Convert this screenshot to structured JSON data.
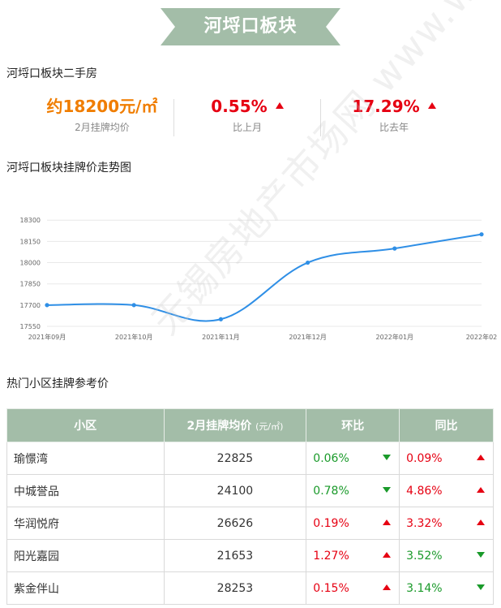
{
  "banner": {
    "title": "河埒口板块"
  },
  "section1": {
    "title": "河埒口板块二手房"
  },
  "stats": {
    "price": {
      "value": "约18200元/㎡",
      "label": "2月挂牌均价",
      "color": "#f07d00"
    },
    "mom": {
      "value": "0.55%",
      "label": "比上月",
      "color": "#e60012"
    },
    "yoy": {
      "value": "17.29%",
      "label": "比去年",
      "color": "#e60012"
    }
  },
  "section2": {
    "title": "河埒口板块挂牌价走势图"
  },
  "chart_data": {
    "type": "line",
    "categories": [
      "2021年09月",
      "2021年10月",
      "2021年11月",
      "2021年12月",
      "2022年01月",
      "2022年02"
    ],
    "values": [
      17700,
      17700,
      17600,
      18000,
      18100,
      18200
    ],
    "yticks": [
      17550,
      17700,
      17850,
      18000,
      18150,
      18300
    ],
    "ylim": [
      17550,
      18330
    ],
    "title": "",
    "xlabel": "",
    "ylabel": "",
    "grid": true,
    "line_color": "#2f8fe6"
  },
  "section3": {
    "title": "热门小区挂牌参考价"
  },
  "table": {
    "headers": {
      "name": "小区",
      "price": "2月挂牌均价",
      "price_unit": "(元/㎡)",
      "mom": "环比",
      "yoy": "同比"
    },
    "rows": [
      {
        "name": "瑜憬湾",
        "price": "22825",
        "mom": "0.06%",
        "mom_dir": "down",
        "yoy": "0.09%",
        "yoy_dir": "up"
      },
      {
        "name": "中城誉品",
        "price": "24100",
        "mom": "0.78%",
        "mom_dir": "down",
        "yoy": "4.86%",
        "yoy_dir": "up"
      },
      {
        "name": "华润悦府",
        "price": "26626",
        "mom": "0.19%",
        "mom_dir": "up",
        "yoy": "3.32%",
        "yoy_dir": "up"
      },
      {
        "name": "阳光嘉园",
        "price": "21653",
        "mom": "1.27%",
        "mom_dir": "up",
        "yoy": "3.52%",
        "yoy_dir": "down"
      },
      {
        "name": "紫金伴山",
        "price": "28253",
        "mom": "0.15%",
        "mom_dir": "up",
        "yoy": "3.14%",
        "yoy_dir": "down"
      }
    ]
  },
  "watermark": {
    "text": "无锡房地产市场网 www.wxhouse.com"
  }
}
